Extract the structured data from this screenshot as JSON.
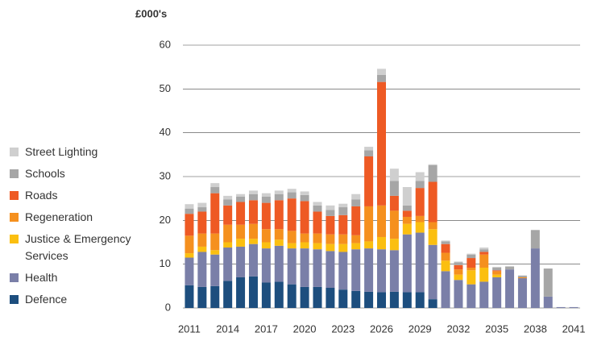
{
  "chart_data": {
    "type": "stacked_bar",
    "y_label": "£000's",
    "x": [
      2011,
      2012,
      2013,
      2014,
      2015,
      2016,
      2017,
      2018,
      2019,
      2020,
      2021,
      2022,
      2023,
      2024,
      2025,
      2026,
      2027,
      2028,
      2029,
      2030,
      2031,
      2032,
      2033,
      2034,
      2035,
      2036,
      2037,
      2038,
      2039,
      2040,
      2041
    ],
    "xlim": [
      2010.5,
      2041.5
    ],
    "xticks": [
      2011,
      2014,
      2017,
      2020,
      2023,
      2026,
      2029,
      2032,
      2035,
      2038,
      2041
    ],
    "ylim": [
      0,
      60
    ],
    "yticks": [
      0,
      10,
      20,
      30,
      40,
      50,
      60
    ],
    "grid": true,
    "legend": "left",
    "series": [
      {
        "name": "Defence",
        "color": "#1d4e7e",
        "values": [
          5.2,
          4.8,
          5.0,
          6.2,
          7.0,
          7.2,
          5.8,
          6.0,
          5.4,
          4.8,
          4.8,
          4.6,
          4.2,
          3.9,
          3.7,
          3.6,
          3.7,
          3.6,
          3.6,
          2.0,
          0,
          0,
          0,
          0,
          0,
          0,
          0,
          0,
          0,
          0,
          0
        ]
      },
      {
        "name": "Health",
        "color": "#7a7fa8",
        "values": [
          6.3,
          8.0,
          7.2,
          7.6,
          7.0,
          7.4,
          7.8,
          8.2,
          8.2,
          8.8,
          8.6,
          8.4,
          8.6,
          9.5,
          9.9,
          9.8,
          9.5,
          13.2,
          13.6,
          12.4,
          8.4,
          6.4,
          5.4,
          6.0,
          7.0,
          8.8,
          6.8,
          13.6,
          2.6,
          0.2,
          0.2
        ]
      },
      {
        "name": "Justice & Emergency Services",
        "color": "#fbbf10",
        "values": [
          1.0,
          1.2,
          1.0,
          1.2,
          1.8,
          1.2,
          1.4,
          1.4,
          1.2,
          1.4,
          1.4,
          1.6,
          1.8,
          1.4,
          1.6,
          2.8,
          2.6,
          2.4,
          2.4,
          3.6,
          2.4,
          1.2,
          3.2,
          3.2,
          0.6,
          0,
          0,
          0,
          0,
          0,
          0
        ]
      },
      {
        "name": "Regeneration",
        "color": "#f5901e",
        "values": [
          4.0,
          3.0,
          3.8,
          4.0,
          3.2,
          3.4,
          3.0,
          2.4,
          2.8,
          2.0,
          2.2,
          2.2,
          2.2,
          1.8,
          8.0,
          7.2,
          6.4,
          1.6,
          1.4,
          1.6,
          1.8,
          1.2,
          0.6,
          3.0,
          0.8,
          0,
          0.2,
          0,
          0,
          0,
          0
        ]
      },
      {
        "name": "Roads",
        "color": "#ee5a24",
        "values": [
          5.0,
          5.0,
          9.2,
          4.4,
          5.2,
          5.4,
          6.0,
          6.6,
          7.4,
          7.4,
          5.0,
          4.2,
          4.4,
          6.6,
          11.4,
          28.2,
          3.4,
          1.4,
          6.4,
          9.2,
          2.0,
          1.0,
          2.2,
          0.6,
          0.2,
          0,
          0,
          0,
          0,
          0,
          0
        ]
      },
      {
        "name": "Schools",
        "color": "#a6a6a6",
        "values": [
          1.2,
          1.0,
          1.4,
          1.4,
          1.2,
          1.4,
          1.4,
          1.4,
          1.4,
          1.4,
          1.4,
          1.4,
          1.8,
          1.6,
          1.4,
          1.6,
          3.4,
          1.2,
          1.6,
          3.8,
          0.6,
          0.6,
          0.8,
          0.6,
          0.6,
          0.6,
          0.4,
          4.2,
          6.4,
          0,
          0
        ]
      },
      {
        "name": "Street Lighting",
        "color": "#cfcfcf",
        "values": [
          1.0,
          1.0,
          0.9,
          0.8,
          0.6,
          0.8,
          0.8,
          0.8,
          0.8,
          0.8,
          0.8,
          1.0,
          0.8,
          1.2,
          0.8,
          1.4,
          2.8,
          4.2,
          2.0,
          0.2,
          0.2,
          0.2,
          0.2,
          0.4,
          0.2,
          0.2,
          0,
          0,
          0,
          0,
          0
        ]
      }
    ]
  }
}
